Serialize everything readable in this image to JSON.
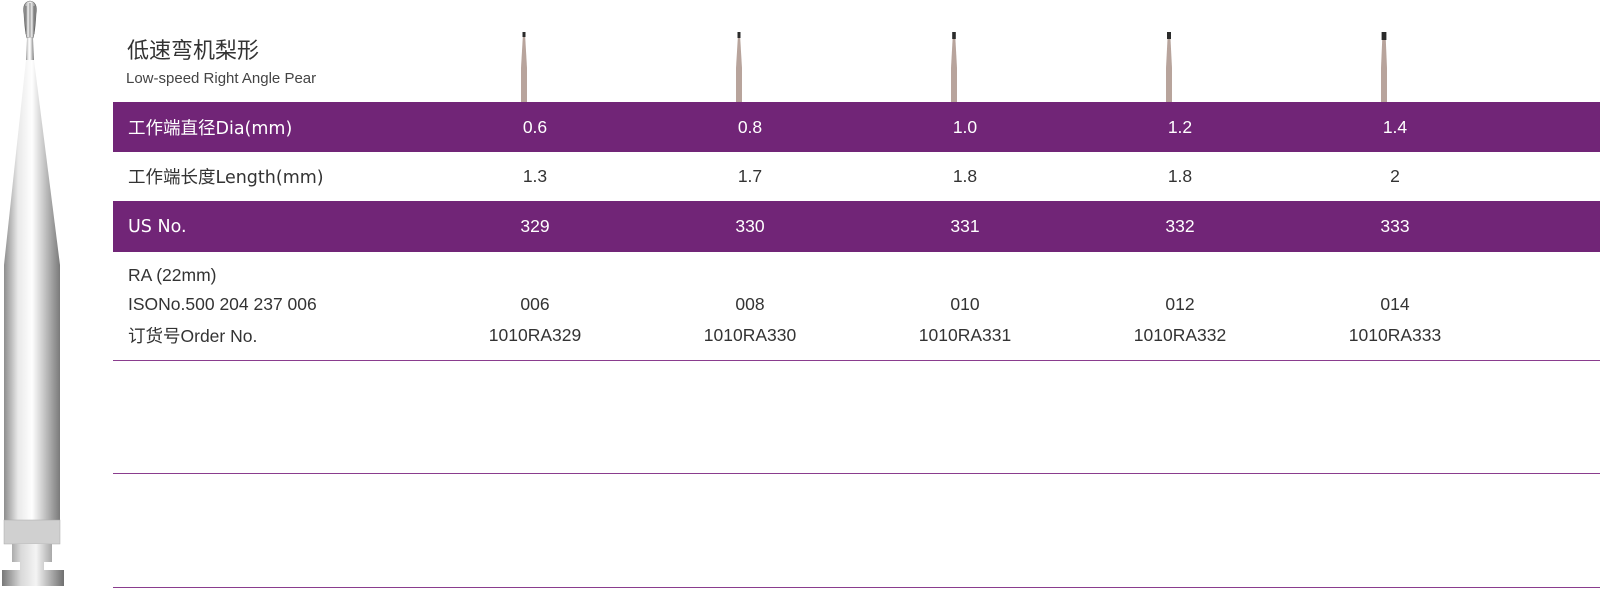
{
  "product": {
    "title_zh": "低速弯机梨形",
    "title_en": "Low-speed Right Angle Pear"
  },
  "table": {
    "rows": [
      {
        "label": "工作端直径Dia(mm)",
        "values": [
          "0.6",
          "0.8",
          "1.0",
          "1.2",
          "1.4"
        ],
        "style": "purple"
      },
      {
        "label": "工作端长度Length(mm)",
        "values": [
          "1.3",
          "1.7",
          "1.8",
          "1.8",
          "2"
        ],
        "style": "white"
      },
      {
        "label": "US No.",
        "values": [
          "329",
          "330",
          "331",
          "332",
          "333"
        ],
        "style": "purple"
      }
    ],
    "order_block": {
      "label_line1": "RA (22mm)",
      "label_line2": "ISONo.500 204 237 006",
      "label_line3": "订货号Order No.",
      "iso_values": [
        "006",
        "008",
        "010",
        "012",
        "014"
      ],
      "order_values": [
        "1010RA329",
        "1010RA330",
        "1010RA331",
        "1010RA332",
        "1010RA333"
      ]
    }
  },
  "colors": {
    "accent_purple": "#712577",
    "rule_purple": "#8a3d8e",
    "bur_shank": "#b8a49c",
    "bur_tip": "#2b2b2b"
  },
  "icons": {
    "hero": "dental-bur-pear-icon",
    "column_thumbs": "bur-thumbnail-icon"
  }
}
